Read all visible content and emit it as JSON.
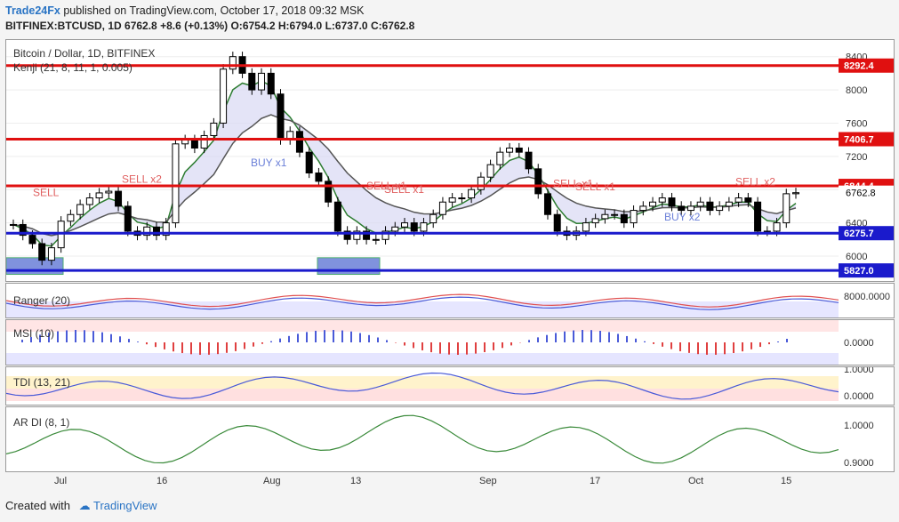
{
  "header": {
    "publisher": "Trade24Fx",
    "published_text": "published on TradingView.com, October 17, 2018 09:32 MSK",
    "symbol": "BITFINEX:BTCUSD, 1D",
    "last": "6762.8",
    "change": "+8.6 (+0.13%)",
    "open_label": "O:",
    "open": "6754.2",
    "high_label": "H:",
    "high": "6794.0",
    "low_label": "L:",
    "low": "6737.0",
    "close_label": "C:",
    "close": "6762.8"
  },
  "main": {
    "title": "Bitcoin / Dollar, 1D, BITFINEX",
    "indicator": "Kenji (21, 8, 11, 1, 0.005)"
  },
  "panels": {
    "ranger": "Ranger (20)",
    "msi": "MSI (10)",
    "tdi": "TDI (13, 21)",
    "ardi": "AR DI (8, 1)"
  },
  "footer": {
    "created": "Created with",
    "brand": "TradingView"
  },
  "colors": {
    "red_line": "#e01010",
    "blue_line": "#1a1acc",
    "brand": "#2a74c4",
    "up_candle": "#ffffff",
    "down_candle": "#000000"
  },
  "chart_data": {
    "type": "candlestick",
    "title": "Bitcoin / Dollar, 1D, BITFINEX",
    "yticks": [
      8400,
      8000,
      7600,
      7200,
      6800,
      6400,
      6000
    ],
    "ylim": [
      5700,
      8600
    ],
    "x_tick_labels": [
      "Jul",
      "16",
      "Aug",
      "13",
      "Sep",
      "17",
      "Oct",
      "15"
    ],
    "horizontal_levels": [
      {
        "value": 8292.4,
        "label": "8292.4",
        "color": "red"
      },
      {
        "value": 7406.7,
        "label": "7406.7",
        "color": "red"
      },
      {
        "value": 6844.4,
        "label": "6844.4",
        "color": "red"
      },
      {
        "value": 6762.8,
        "label": "6762.8",
        "color": "current"
      },
      {
        "value": 6275.7,
        "label": "6275.7",
        "color": "blue"
      },
      {
        "value": 5827.0,
        "label": "5827.0",
        "color": "blue"
      }
    ],
    "annotations": [
      "SELL",
      "SELL x2",
      "BUY x1",
      "SELL x1",
      "SELL x1",
      "SELL x1",
      "SELL x1",
      "BUY x2",
      "SELL x2"
    ],
    "close_series": [
      6380,
      6250,
      6150,
      5950,
      6100,
      6420,
      6500,
      6620,
      6700,
      6760,
      6780,
      6600,
      6300,
      6250,
      6350,
      6250,
      6400,
      7350,
      7400,
      7300,
      7450,
      7600,
      8250,
      8400,
      8200,
      8000,
      8200,
      7950,
      7400,
      7500,
      7250,
      7000,
      6900,
      6650,
      6300,
      6200,
      6300,
      6200,
      6200,
      6300,
      6350,
      6400,
      6300,
      6400,
      6500,
      6650,
      6700,
      6700,
      6800,
      6950,
      7100,
      7250,
      7300,
      7250,
      7050,
      6750,
      6500,
      6300,
      6250,
      6300,
      6400,
      6450,
      6500,
      6500,
      6400,
      6550,
      6600,
      6650,
      6700,
      6600,
      6550,
      6600,
      6650,
      6550,
      6600,
      6650,
      6700,
      6650,
      6300,
      6300,
      6400,
      6750,
      6762.8
    ],
    "panels": [
      {
        "name": "Ranger (20)",
        "yticks": [
          "8000.0000"
        ]
      },
      {
        "name": "MSI (10)",
        "yticks": [
          "0.0000"
        ]
      },
      {
        "name": "TDI (13, 21)",
        "yticks": [
          "1.0000",
          "0.0000"
        ]
      },
      {
        "name": "AR DI (8, 1)",
        "yticks": [
          "1.0000",
          "0.9000"
        ]
      }
    ]
  }
}
